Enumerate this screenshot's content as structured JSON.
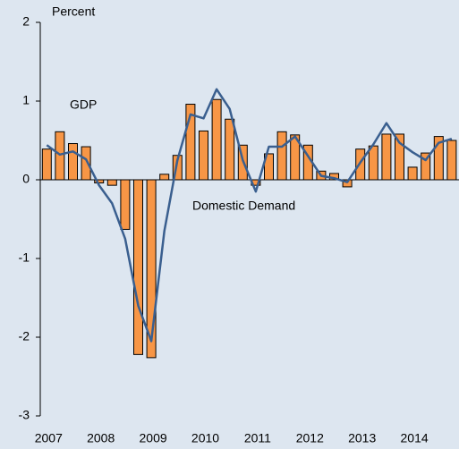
{
  "chart_data": {
    "type": "bar",
    "y_label": "Percent",
    "categories": [
      "2007",
      null,
      null,
      null,
      "2008",
      null,
      null,
      null,
      "2009",
      null,
      null,
      null,
      "2010",
      null,
      null,
      null,
      "2011",
      null,
      null,
      null,
      "2012",
      null,
      null,
      null,
      "2013",
      null,
      null,
      null,
      "2014",
      null,
      null,
      null
    ],
    "series": [
      {
        "name": "GDP",
        "type": "bar",
        "color": "#f79646",
        "values": [
          0.39,
          0.61,
          0.46,
          0.42,
          -0.04,
          -0.07,
          -0.63,
          -2.22,
          -2.26,
          0.07,
          0.31,
          0.96,
          0.62,
          1.02,
          0.77,
          0.44,
          -0.07,
          0.33,
          0.61,
          0.57,
          0.44,
          0.11,
          0.08,
          -0.09,
          0.39,
          0.43,
          0.58,
          0.58,
          0.16,
          0.34,
          0.55,
          0.5
        ]
      },
      {
        "name": "Domestic Demand",
        "type": "line",
        "color": "#3a5f8f",
        "values": [
          0.44,
          0.32,
          0.36,
          0.26,
          -0.07,
          -0.3,
          -0.75,
          -1.6,
          -2.05,
          -0.65,
          0.25,
          0.83,
          0.78,
          1.15,
          0.9,
          0.25,
          -0.15,
          0.42,
          0.42,
          0.55,
          0.3,
          0.05,
          0.02,
          -0.03,
          0.22,
          0.45,
          0.72,
          0.47,
          0.35,
          0.25,
          0.47,
          0.52
        ]
      }
    ],
    "ylim": [
      -3,
      2
    ],
    "yticks": [
      -3,
      -2,
      -1,
      0,
      1,
      2
    ]
  }
}
